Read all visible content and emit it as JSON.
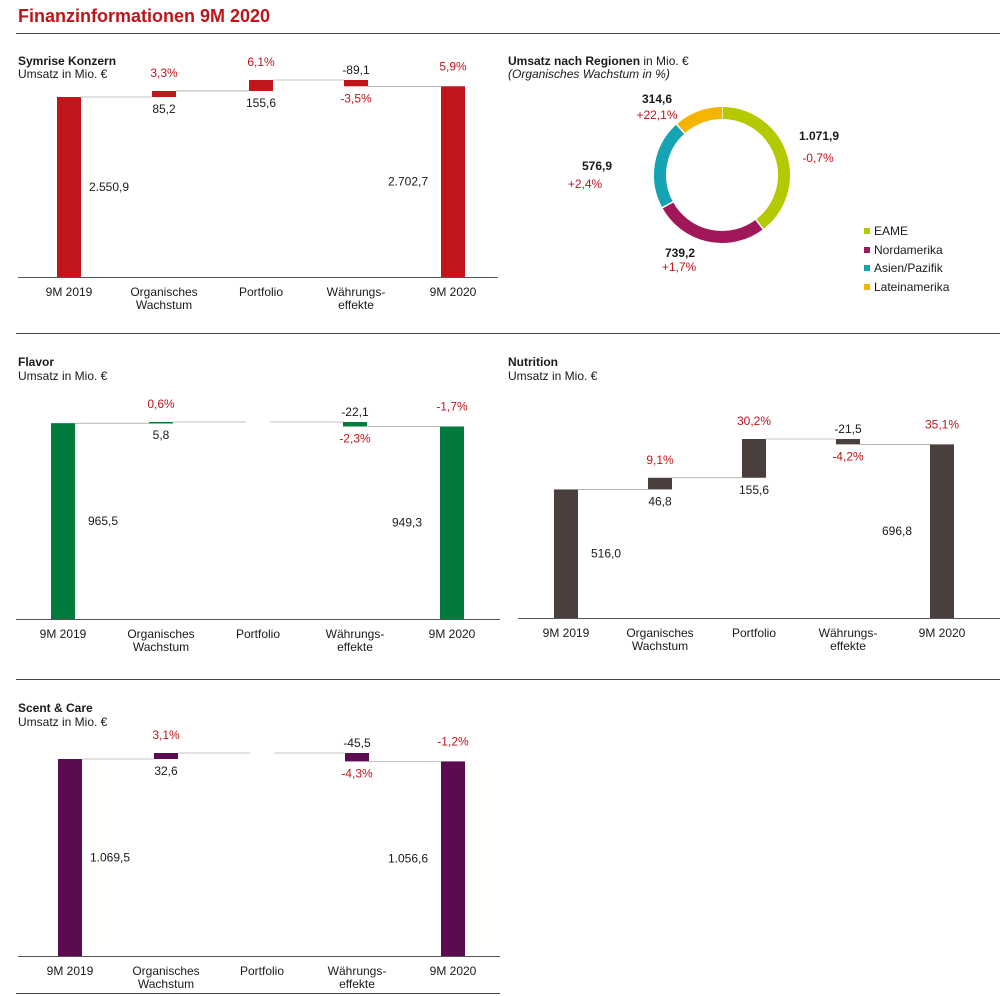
{
  "page": {
    "title": "Finanzinformationen 9M 2020"
  },
  "colors": {
    "growth": "#c0141b",
    "text": "#1a1a1a"
  },
  "regions": {
    "title": "Umsatz nach Regionen",
    "title_suffix": "in Mio. €",
    "subtitle": "(Organisches Wachstum in %)"
  },
  "chart_data": [
    {
      "id": "konzern",
      "type": "waterfall",
      "title": "Symrise Konzern",
      "subtitle": "Umsatz in Mio. €",
      "color": "#c1161c",
      "categories": [
        "9M 2019",
        "Organisches Wachstum",
        "Portfolio",
        "Währungs-effekte",
        "9M 2020"
      ],
      "category_lines": [
        [
          "9M 2019"
        ],
        [
          "Organisches",
          "Wachstum"
        ],
        [
          "Portfolio"
        ],
        [
          "Währungs-",
          "effekte"
        ],
        [
          "9M 2020"
        ]
      ],
      "start": 2550.9,
      "deltas": [
        85.2,
        155.6,
        -89.1
      ],
      "end": 2702.7,
      "value_labels": [
        "2.550,9",
        "85,2",
        "155,6",
        "-89,1",
        "2.702,7"
      ],
      "growth_labels": [
        "",
        "3,3%",
        "6,1%",
        "-3,5%",
        "5,9%"
      ]
    },
    {
      "id": "regions",
      "type": "pie",
      "title": "Umsatz nach Regionen in Mio. €",
      "subtitle": "(Organisches Wachstum in %)",
      "slices": [
        {
          "name": "EAME",
          "value": 1071.9,
          "value_label": "1.071,9",
          "growth_label": "-0,7%",
          "color": "#b5c900"
        },
        {
          "name": "Nordamerika",
          "value": 739.2,
          "value_label": "739,2",
          "growth_label": "+1,7%",
          "color": "#a0185a"
        },
        {
          "name": "Asien/Pazifik",
          "value": 576.9,
          "value_label": "576,9",
          "growth_label": "+2,4%",
          "color": "#16a3b3"
        },
        {
          "name": "Lateinamerika",
          "value": 314.6,
          "value_label": "314,6",
          "growth_label": "+22,1%",
          "color": "#f5b400"
        }
      ],
      "legend": "right"
    },
    {
      "id": "flavor",
      "type": "waterfall",
      "title": "Flavor",
      "subtitle": "Umsatz in Mio. €",
      "color": "#007a3d",
      "categories": [
        "9M 2019",
        "Organisches Wachstum",
        "Portfolio",
        "Währungs-effekte",
        "9M 2020"
      ],
      "category_lines": [
        [
          "9M 2019"
        ],
        [
          "Organisches",
          "Wachstum"
        ],
        [
          "Portfolio"
        ],
        [
          "Währungs-",
          "effekte"
        ],
        [
          "9M 2020"
        ]
      ],
      "start": 965.5,
      "deltas": [
        5.8,
        0,
        -22.1
      ],
      "end": 949.3,
      "value_labels": [
        "965,5",
        "5,8",
        "",
        "-22,1",
        "949,3"
      ],
      "growth_labels": [
        "",
        "0,6%",
        "",
        "-2,3%",
        "-1,7%"
      ]
    },
    {
      "id": "nutrition",
      "type": "waterfall",
      "title": "Nutrition",
      "subtitle": "Umsatz in Mio. €",
      "color": "#4a3f3c",
      "categories": [
        "9M 2019",
        "Organisches Wachstum",
        "Portfolio",
        "Währungs-effekte",
        "9M 2020"
      ],
      "category_lines": [
        [
          "9M 2019"
        ],
        [
          "Organisches",
          "Wachstum"
        ],
        [
          "Portfolio"
        ],
        [
          "Währungs-",
          "effekte"
        ],
        [
          "9M 2020"
        ]
      ],
      "start": 516.0,
      "deltas": [
        46.8,
        155.6,
        -21.5
      ],
      "end": 696.8,
      "value_labels": [
        "516,0",
        "46,8",
        "155,6",
        "-21,5",
        "696,8"
      ],
      "growth_labels": [
        "",
        "9,1%",
        "30,2%",
        "-4,2%",
        "35,1%"
      ]
    },
    {
      "id": "scent",
      "type": "waterfall",
      "title": "Scent & Care",
      "subtitle": "Umsatz in Mio. €",
      "color": "#5c0a52",
      "categories": [
        "9M 2019",
        "Organisches Wachstum",
        "Portfolio",
        "Währungs-effekte",
        "9M 2020"
      ],
      "category_lines": [
        [
          "9M 2019"
        ],
        [
          "Organisches",
          "Wachstum"
        ],
        [
          "Portfolio"
        ],
        [
          "Währungs-",
          "effekte"
        ],
        [
          "9M 2020"
        ]
      ],
      "start": 1069.5,
      "deltas": [
        32.6,
        0,
        -45.5
      ],
      "end": 1056.6,
      "value_labels": [
        "1.069,5",
        "32,6",
        "",
        "-45,5",
        "1.056,6"
      ],
      "growth_labels": [
        "",
        "3,1%",
        "",
        "-4,3%",
        "-1,2%"
      ]
    }
  ]
}
